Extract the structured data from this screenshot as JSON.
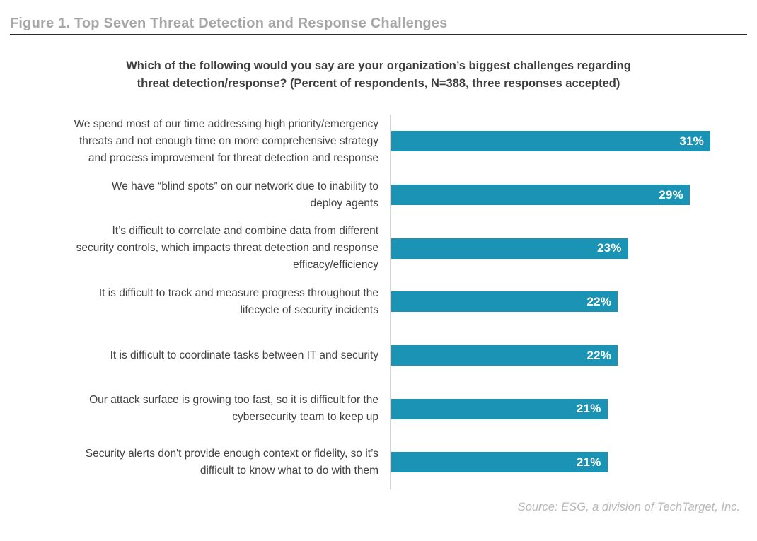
{
  "figure": {
    "title": "Figure 1. Top Seven Threat Detection and Response Challenges"
  },
  "chart_data": {
    "type": "bar",
    "orientation": "horizontal",
    "title": "Which of the following would you say are your organization’s biggest challenges regarding\nthreat detection/response? (Percent of respondents, N=388, three responses accepted)",
    "categories": [
      "We spend most of our time addressing high priority/emergency\nthreats and not enough time on more comprehensive strategy\nand process improvement for threat detection and response",
      "We have “blind spots” on our network due to inability to\ndeploy agents",
      "It’s difficult to correlate and combine data from different\nsecurity controls, which impacts threat detection and response\nefficacy/efficiency",
      "It is difficult to track and measure progress throughout the\nlifecycle of security incidents",
      "It is difficult to coordinate tasks between IT and security",
      "Our attack surface is growing too fast, so it is difficult for the\ncybersecurity team to keep up",
      "Security alerts don't provide enough context or fidelity, so it’s\ndifficult to know what to do with them"
    ],
    "values": [
      31,
      29,
      23,
      22,
      22,
      21,
      21
    ],
    "value_suffix": "%",
    "value_label_position": "inside-end",
    "bar_color": "#1a93b4",
    "value_label_color": "#ffffff",
    "xlim": [
      0,
      31
    ],
    "grid": false,
    "legend": "none",
    "xlabel": "",
    "ylabel": ""
  },
  "footer": {
    "source": "Source: ESG, a division of TechTarget, Inc."
  }
}
